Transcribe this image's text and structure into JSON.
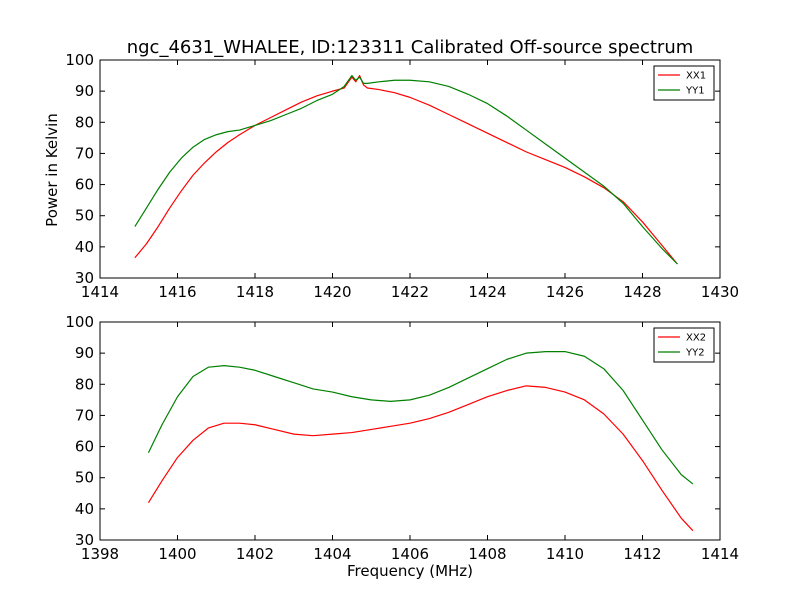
{
  "figure": {
    "title": "ngc_4631_WHALEE, ID:123311 Calibrated Off-source spectrum",
    "xlabel": "Frequency (MHz)",
    "ylabel": "Power in Kelvin"
  },
  "chart_data": [
    {
      "type": "line",
      "title": "ngc_4631_WHALEE, ID:123311 Calibrated Off-source spectrum",
      "xlabel": "",
      "ylabel": "Power in Kelvin",
      "xlim": [
        1414,
        1430
      ],
      "ylim": [
        30,
        100
      ],
      "xticks": [
        1414,
        1416,
        1418,
        1420,
        1422,
        1424,
        1426,
        1428,
        1430
      ],
      "yticks": [
        30,
        40,
        50,
        60,
        70,
        80,
        90,
        100
      ],
      "legend": "top-right",
      "grid": false,
      "series": [
        {
          "name": "XX1",
          "color": "#ff0000",
          "x": [
            1414.9,
            1415.2,
            1415.5,
            1415.8,
            1416.1,
            1416.4,
            1416.7,
            1417.0,
            1417.3,
            1417.6,
            1418.0,
            1418.4,
            1418.8,
            1419.2,
            1419.6,
            1420.0,
            1420.3,
            1420.5,
            1420.6,
            1420.7,
            1420.8,
            1420.9,
            1421.2,
            1421.6,
            1422.0,
            1422.5,
            1423.0,
            1423.5,
            1424.0,
            1424.5,
            1425.0,
            1425.5,
            1426.0,
            1426.5,
            1427.0,
            1427.5,
            1428.0,
            1428.5,
            1428.9
          ],
          "values": [
            36.5,
            41.0,
            46.5,
            52.5,
            58.0,
            63.0,
            67.0,
            70.5,
            73.5,
            76.0,
            79.0,
            81.5,
            84.0,
            86.5,
            88.5,
            90.0,
            91.0,
            94.5,
            93.0,
            95.0,
            92.0,
            91.0,
            90.5,
            89.5,
            88.0,
            85.5,
            82.5,
            79.5,
            76.5,
            73.5,
            70.5,
            68.0,
            65.5,
            62.5,
            59.0,
            54.5,
            48.0,
            40.5,
            34.5
          ]
        },
        {
          "name": "YY1",
          "color": "#008000",
          "x": [
            1414.9,
            1415.2,
            1415.5,
            1415.8,
            1416.1,
            1416.4,
            1416.7,
            1417.0,
            1417.3,
            1417.6,
            1418.0,
            1418.4,
            1418.8,
            1419.2,
            1419.6,
            1420.0,
            1420.3,
            1420.5,
            1420.6,
            1420.7,
            1420.8,
            1420.9,
            1421.2,
            1421.6,
            1422.0,
            1422.5,
            1423.0,
            1423.5,
            1424.0,
            1424.5,
            1425.0,
            1425.5,
            1426.0,
            1426.5,
            1427.0,
            1427.5,
            1428.0,
            1428.5,
            1428.9
          ],
          "values": [
            46.5,
            52.5,
            58.5,
            64.0,
            68.5,
            72.0,
            74.5,
            76.0,
            77.0,
            77.5,
            79.0,
            80.5,
            82.5,
            84.5,
            87.0,
            89.0,
            91.5,
            95.0,
            93.5,
            94.5,
            92.5,
            92.5,
            93.0,
            93.5,
            93.5,
            93.0,
            91.5,
            89.0,
            86.0,
            82.0,
            77.5,
            73.0,
            68.5,
            64.0,
            59.5,
            54.0,
            46.5,
            39.5,
            34.5
          ]
        }
      ]
    },
    {
      "type": "line",
      "title": "",
      "xlabel": "Frequency (MHz)",
      "ylabel": "",
      "xlim": [
        1398,
        1414
      ],
      "ylim": [
        30,
        100
      ],
      "xticks": [
        1398,
        1400,
        1402,
        1404,
        1406,
        1408,
        1410,
        1412,
        1414
      ],
      "yticks": [
        30,
        40,
        50,
        60,
        70,
        80,
        90,
        100
      ],
      "legend": "top-right",
      "grid": false,
      "series": [
        {
          "name": "XX2",
          "color": "#ff0000",
          "x": [
            1399.25,
            1399.6,
            1400.0,
            1400.4,
            1400.8,
            1401.2,
            1401.6,
            1402.0,
            1402.5,
            1403.0,
            1403.5,
            1404.0,
            1404.5,
            1405.0,
            1405.5,
            1406.0,
            1406.5,
            1407.0,
            1407.5,
            1408.0,
            1408.5,
            1409.0,
            1409.5,
            1410.0,
            1410.5,
            1411.0,
            1411.5,
            1412.0,
            1412.5,
            1413.0,
            1413.3
          ],
          "values": [
            42.0,
            49.0,
            56.5,
            62.0,
            66.0,
            67.5,
            67.5,
            67.0,
            65.5,
            64.0,
            63.5,
            64.0,
            64.5,
            65.5,
            66.5,
            67.5,
            69.0,
            71.0,
            73.5,
            76.0,
            78.0,
            79.5,
            79.0,
            77.5,
            75.0,
            70.5,
            64.0,
            55.5,
            46.0,
            37.0,
            33.0
          ]
        },
        {
          "name": "YY2",
          "color": "#008000",
          "x": [
            1399.25,
            1399.6,
            1400.0,
            1400.4,
            1400.8,
            1401.2,
            1401.6,
            1402.0,
            1402.5,
            1403.0,
            1403.5,
            1404.0,
            1404.5,
            1405.0,
            1405.5,
            1406.0,
            1406.5,
            1407.0,
            1407.5,
            1408.0,
            1408.5,
            1409.0,
            1409.5,
            1410.0,
            1410.5,
            1411.0,
            1411.5,
            1412.0,
            1412.5,
            1413.0,
            1413.3
          ],
          "values": [
            58.0,
            67.0,
            76.0,
            82.5,
            85.5,
            86.0,
            85.5,
            84.5,
            82.5,
            80.5,
            78.5,
            77.5,
            76.0,
            75.0,
            74.5,
            75.0,
            76.5,
            79.0,
            82.0,
            85.0,
            88.0,
            90.0,
            90.5,
            90.5,
            89.0,
            85.0,
            78.0,
            68.5,
            59.0,
            51.0,
            48.0
          ]
        }
      ]
    }
  ]
}
